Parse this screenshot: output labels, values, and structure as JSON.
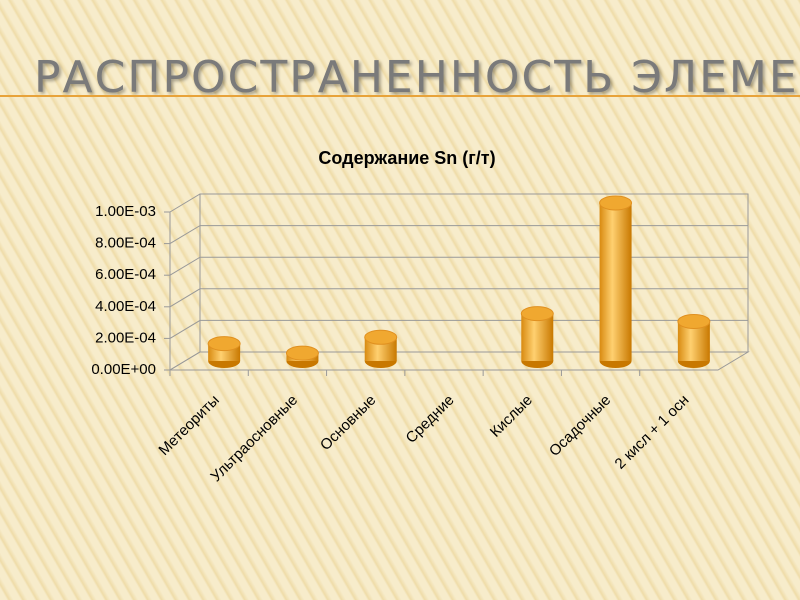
{
  "header": {
    "title": "РАСПРОСТРАНЕННОСТЬ ЭЛЕМЕНТА"
  },
  "chart_data": {
    "type": "bar3d",
    "title": "Содержание Sn (г/т)",
    "categories": [
      "Метеориты",
      "Ультраосновные",
      "Основные",
      "Средние",
      "Кислые",
      "Осадочные",
      "2 кисл + 1  осн"
    ],
    "values": [
      0.00011,
      5e-05,
      0.00015,
      null,
      0.0003,
      0.001,
      0.00025
    ],
    "color": "#f0a830",
    "ylim": [
      0,
      0.001
    ],
    "yticks": [
      {
        "value": 0,
        "label": "0.00E+00"
      },
      {
        "value": 0.0002,
        "label": "2.00E-04"
      },
      {
        "value": 0.0004,
        "label": "4.00E-04"
      },
      {
        "value": 0.0006,
        "label": "6.00E-04"
      },
      {
        "value": 0.0008,
        "label": "8.00E-04"
      },
      {
        "value": 0.001,
        "label": "1.00E-03"
      }
    ],
    "grid": true
  }
}
